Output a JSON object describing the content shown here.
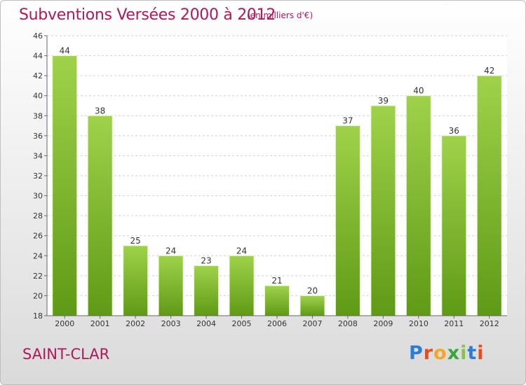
{
  "header": {
    "title": "Subventions Versées 2000 à 2012",
    "subtitle": "(en milliers d'€)"
  },
  "footer": {
    "commune": "SAINT-CLAR",
    "logo_text": "Proxiti"
  },
  "colors": {
    "bar_top": "#9fd24a",
    "bar_bottom": "#5f9a16",
    "title": "#b0185a",
    "grid": "#d0d0d0"
  },
  "chart_data": {
    "type": "bar",
    "categories": [
      "2000",
      "2001",
      "2002",
      "2003",
      "2004",
      "2005",
      "2006",
      "2007",
      "2008",
      "2009",
      "2010",
      "2011",
      "2012"
    ],
    "values": [
      44,
      38,
      25,
      24,
      23,
      24,
      21,
      20,
      37,
      39,
      40,
      36,
      42
    ],
    "title": "Subventions Versées 2000 à 2012",
    "subtitle": "(en milliers d'€)",
    "ylim": [
      18,
      46
    ],
    "yticks": [
      18,
      20,
      22,
      24,
      26,
      28,
      30,
      32,
      34,
      36,
      38,
      40,
      42,
      44,
      46
    ],
    "grid": true,
    "data_labels": true
  }
}
